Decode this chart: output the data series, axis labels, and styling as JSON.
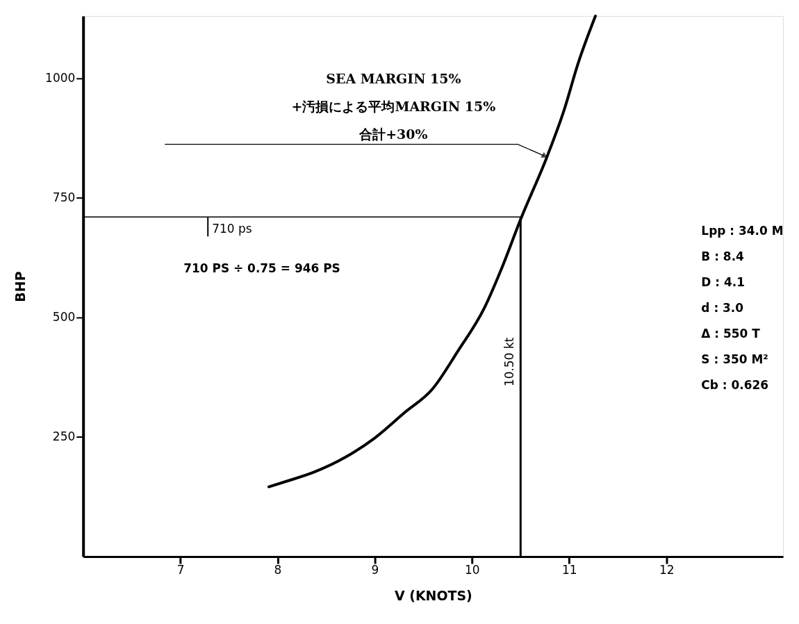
{
  "chart_data": {
    "type": "line",
    "xlabel": "V (KNOTS)",
    "ylabel": "BHP",
    "series": [
      {
        "color": "#000000",
        "x": [
          7.91,
          8.1,
          8.38,
          8.7,
          9.0,
          9.3,
          9.6,
          9.85,
          10.13,
          10.3,
          10.5,
          10.77,
          10.95,
          11.09,
          11.27
        ],
        "values": [
          146,
          158,
          177,
          208,
          248,
          300,
          352,
          428,
          521,
          600,
          705,
          835,
          935,
          1030,
          1130
        ]
      }
    ],
    "xlim": [
      6,
      13.2
    ],
    "ylim": [
      0,
      1130
    ],
    "xticks": [
      7,
      8,
      9,
      10,
      11,
      12
    ],
    "yticks": [
      250,
      500,
      750,
      1000
    ],
    "grid": false,
    "marker": "none",
    "line_style": "solid",
    "ref_lines": [
      {
        "axis": "y",
        "value": 710,
        "label": "710 ps"
      },
      {
        "axis": "x",
        "value": 10.5,
        "label": "10.50 kt"
      }
    ],
    "annotations": [
      {
        "text": "SEA MARGIN 15%\n+汚損による平均MARGIN 15%\n合計+30%",
        "x": 10.74,
        "y": 838
      },
      "710 PS ÷ 0.75 = 946 PS",
      "Lpp  :  34.0 M",
      "B  :  8.4",
      "D  :  4.1",
      "d  :  3.0",
      "Δ  :  550 T",
      "S  :  350 M²",
      "Cb  :  0.626"
    ]
  }
}
